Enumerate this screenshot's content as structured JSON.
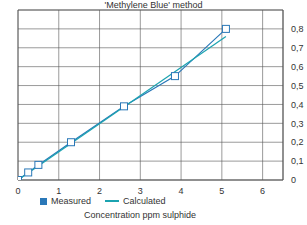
{
  "chart_data": {
    "type": "line",
    "title": "'Methylene Blue' method",
    "x_label": "Concentration ppm sulphide",
    "series": [
      {
        "name": "Measured",
        "color": "#2a78b8",
        "marker": "square",
        "line_style": "solid",
        "x": [
          0,
          0.25,
          0.5,
          1.3,
          2.6,
          3.85,
          5.1
        ],
        "values": [
          0,
          0.04,
          0.08,
          0.2,
          0.39,
          0.55,
          0.8
        ]
      },
      {
        "name": "Calculated",
        "color": "#1ba3b0",
        "marker": "none",
        "line_style": "solid",
        "x": [
          0,
          5.1
        ],
        "values": [
          0,
          0.76
        ]
      }
    ],
    "xlim": [
      0,
      6.5
    ],
    "xticks": [
      0,
      1,
      2,
      3,
      4,
      5,
      6
    ],
    "ylim": [
      0,
      0.9
    ],
    "yticks": [
      0,
      {
        "value": 0.1,
        "label": "0,1"
      },
      {
        "value": 0.2,
        "label": "0,2"
      },
      {
        "value": 0.3,
        "label": "0,3"
      },
      {
        "value": 0.4,
        "label": "0,4"
      },
      {
        "value": 0.5,
        "label": "0,5"
      },
      {
        "value": 0.6,
        "label": "0,6"
      },
      {
        "value": 0.7,
        "label": "0,7"
      },
      {
        "value": 0.8,
        "label": "0,8"
      }
    ],
    "grid": true
  }
}
